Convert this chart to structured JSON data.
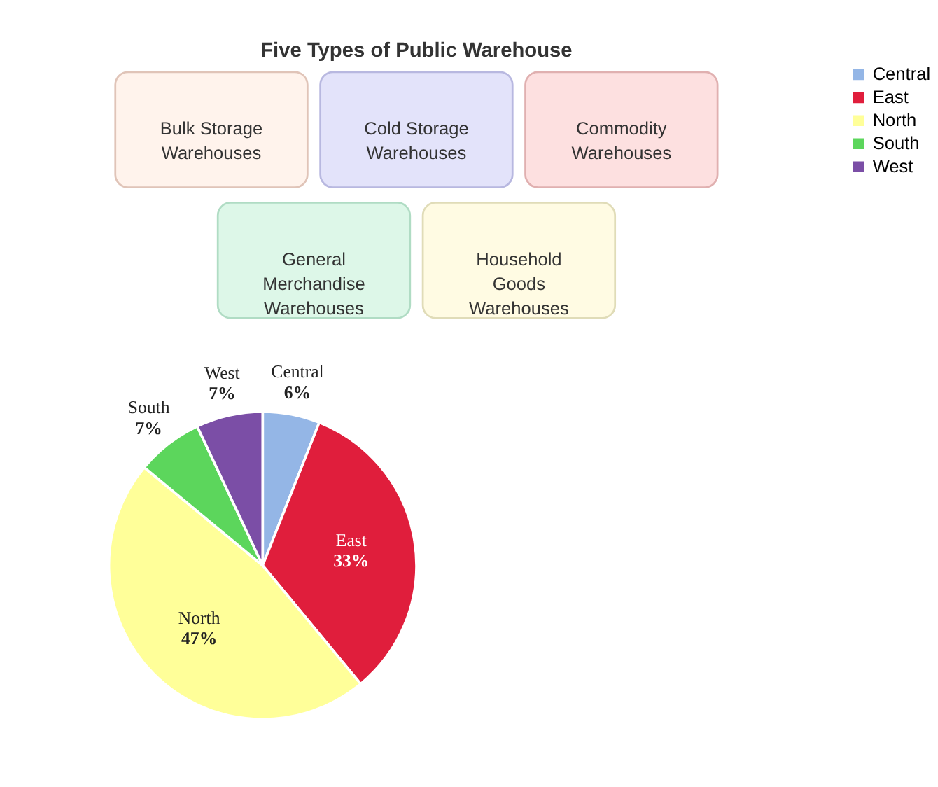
{
  "chart_data": [
    {
      "type": "other",
      "title": "Five Types of Public Warehouse",
      "annotations": [
        "Bulk Storage\nWarehouses",
        "Cold Storage\nWarehouses",
        "Commodity\nWarehouses",
        "General\nMerchandise\nWarehouses",
        "Household\nGoods\nWarehouses"
      ]
    },
    {
      "type": "pie",
      "categories": [
        "Central",
        "East",
        "North",
        "South",
        "West"
      ],
      "values": [
        6,
        33,
        47,
        7,
        7
      ],
      "value_labels": [
        "6%",
        "33%",
        "47%",
        "7%",
        "7%"
      ],
      "colors": [
        "#94b6e6",
        "#e01e3c",
        "#ffff99",
        "#5cd65c",
        "#7b4ea6"
      ],
      "legend": "right"
    }
  ]
}
